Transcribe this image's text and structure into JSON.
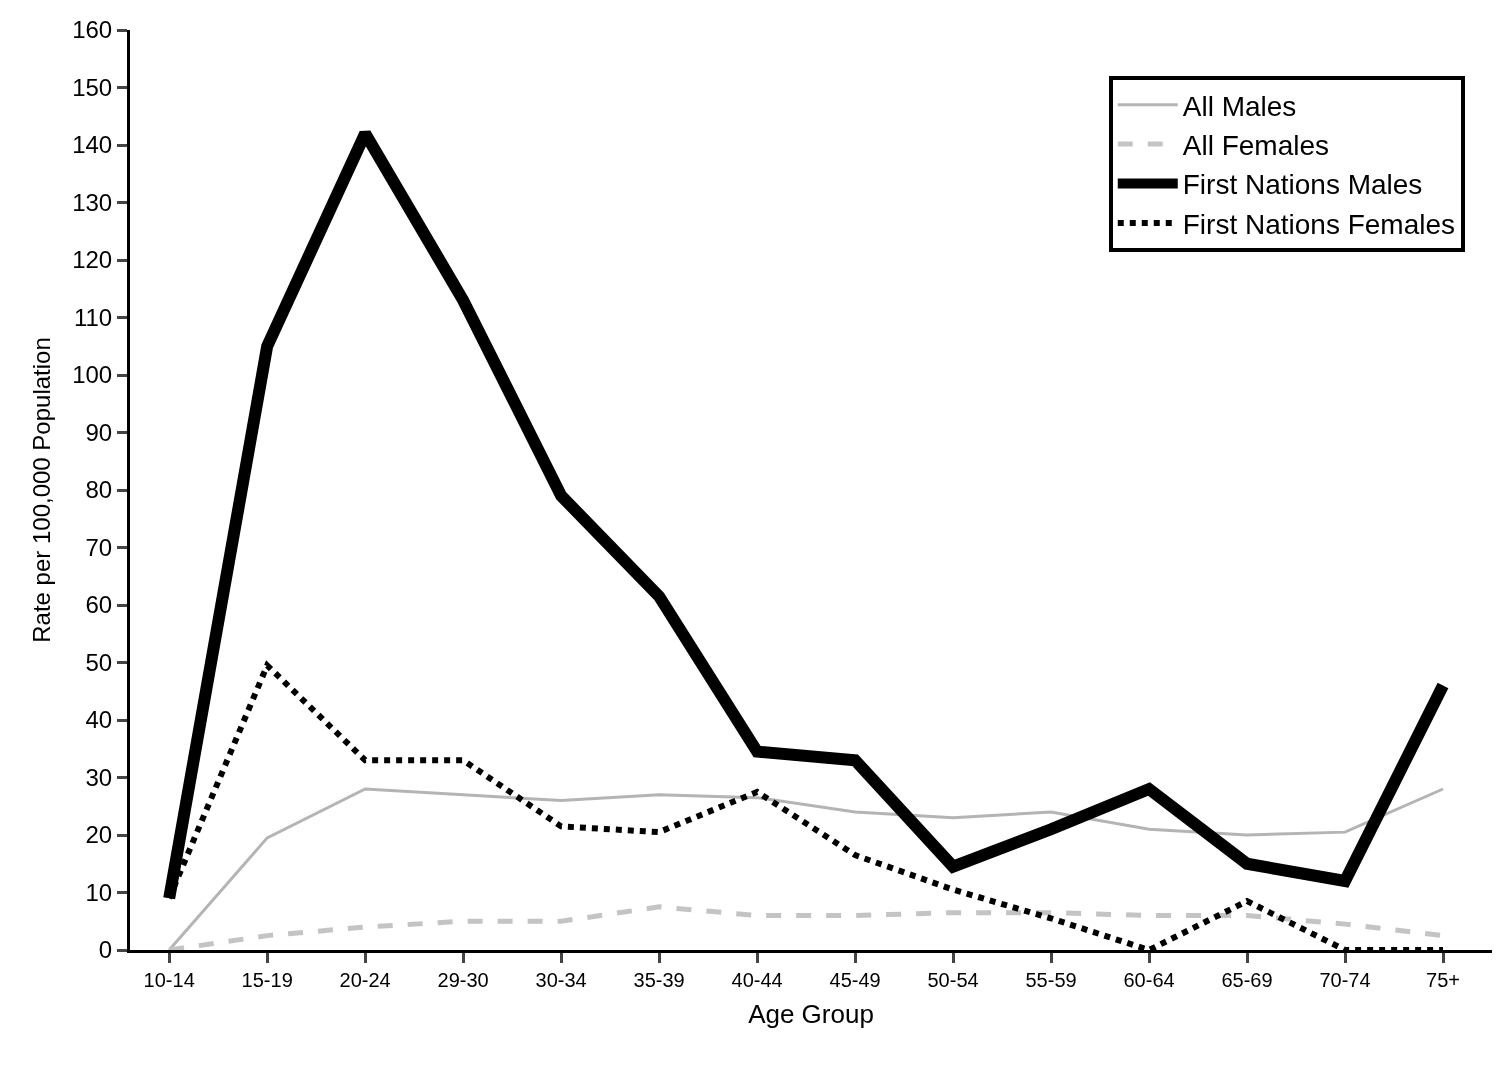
{
  "chart_data": {
    "type": "line",
    "xlabel": "Age Group",
    "ylabel": "Rate per 100,000 Population",
    "categories": [
      "10-14",
      "15-19",
      "20-24",
      "29-30",
      "30-34",
      "35-39",
      "40-44",
      "45-49",
      "50-54",
      "55-59",
      "60-64",
      "65-69",
      "70-74",
      "75+"
    ],
    "series": [
      {
        "name": "All Males",
        "color": "#b4b4b4",
        "line_style": "solid",
        "values": [
          0,
          19.5,
          28,
          27,
          26,
          27,
          26.5,
          24,
          23,
          24,
          21,
          20,
          20.5,
          28
        ]
      },
      {
        "name": "All Females",
        "color": "#c4c4c4",
        "line_style": "dashed",
        "values": [
          0,
          2.5,
          4,
          5,
          5,
          7.5,
          6,
          6,
          6.5,
          6.5,
          6,
          6,
          4.5,
          2.5
        ]
      },
      {
        "name": "First Nations Males",
        "color": "#000000",
        "line_style": "solid",
        "values": [
          9,
          105,
          142,
          113,
          79,
          61.5,
          34.5,
          33,
          14.5,
          21,
          28,
          15,
          12,
          46
        ]
      },
      {
        "name": "First Nations Females",
        "color": "#000000",
        "line_style": "dotted",
        "values": [
          9,
          49.5,
          33,
          33,
          21.5,
          20.5,
          27.5,
          16.5,
          10.5,
          5.5,
          0,
          8.5,
          0,
          0
        ]
      }
    ],
    "ylim": [
      0,
      160
    ],
    "yticks": [
      0,
      10,
      20,
      30,
      40,
      50,
      60,
      70,
      80,
      90,
      100,
      110,
      120,
      130,
      140,
      150,
      160
    ],
    "legend": "top right",
    "marker": "none"
  }
}
